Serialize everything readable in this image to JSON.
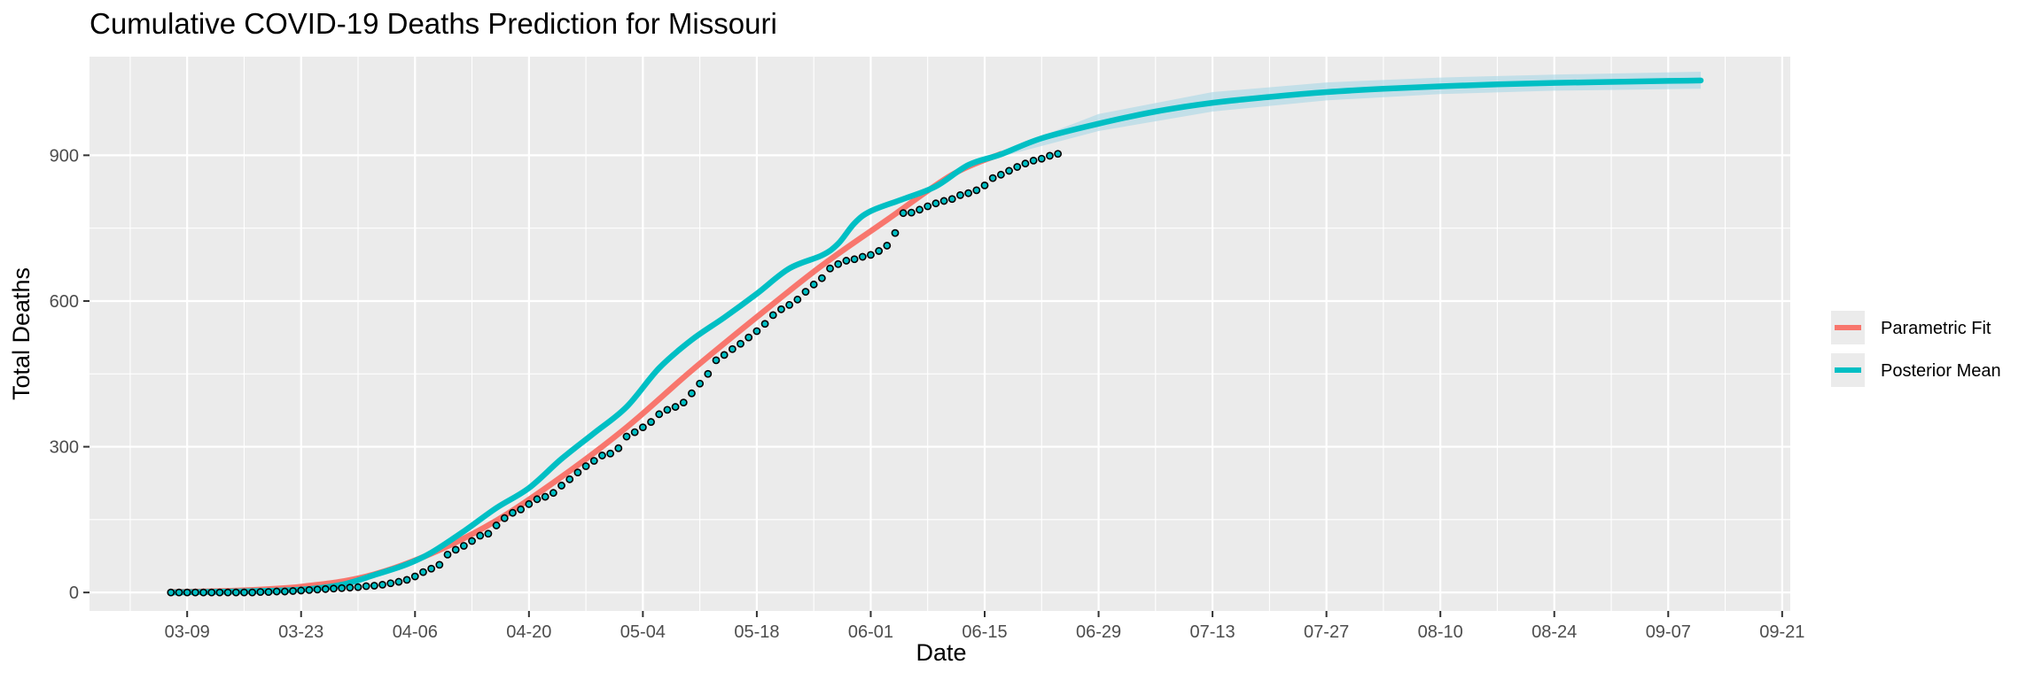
{
  "chart_data": {
    "type": "line",
    "title": "Cumulative COVID-19 Deaths Prediction for Missouri",
    "xlabel": "Date",
    "ylabel": "Total Deaths",
    "x_axis": {
      "kind": "date",
      "year": 2020,
      "range": [
        "2020-02-26",
        "2020-09-22"
      ],
      "tick_dates": [
        "2020-03-09",
        "2020-03-23",
        "2020-04-06",
        "2020-04-20",
        "2020-05-04",
        "2020-05-18",
        "2020-06-01",
        "2020-06-15",
        "2020-06-29",
        "2020-07-13",
        "2020-07-27",
        "2020-08-10",
        "2020-08-24",
        "2020-09-07",
        "2020-09-21"
      ],
      "tick_labels": [
        "03-09",
        "03-23",
        "04-06",
        "04-20",
        "05-04",
        "05-18",
        "06-01",
        "06-15",
        "06-29",
        "07-13",
        "07-27",
        "08-10",
        "08-24",
        "09-07",
        "09-21"
      ]
    },
    "ylim": [
      -38,
      1103
    ],
    "y_ticks": [
      0,
      300,
      600,
      900
    ],
    "grid": true,
    "legend_position": "right",
    "legend": [
      {
        "label": "Parametric Fit",
        "color": "#F8766D"
      },
      {
        "label": "Posterior Mean",
        "color": "#00BFC4"
      }
    ],
    "series": [
      {
        "name": "Parametric Fit",
        "color": "#F8766D",
        "x": [
          "2020-03-07",
          "2020-03-15",
          "2020-03-23",
          "2020-03-31",
          "2020-04-08",
          "2020-04-16",
          "2020-04-24",
          "2020-05-02",
          "2020-05-10",
          "2020-05-18",
          "2020-05-26",
          "2020-06-03",
          "2020-06-11",
          "2020-06-17"
        ],
        "y": [
          1,
          4,
          12,
          33,
          80,
          148,
          238,
          340,
          457,
          567,
          673,
          767,
          860,
          903
        ]
      },
      {
        "name": "Posterior Mean",
        "color": "#00BFC4",
        "x": [
          "2020-03-07",
          "2020-03-15",
          "2020-03-23",
          "2020-03-28",
          "2020-04-01",
          "2020-04-05",
          "2020-04-08",
          "2020-04-12",
          "2020-04-16",
          "2020-04-20",
          "2020-04-24",
          "2020-04-28",
          "2020-05-02",
          "2020-05-06",
          "2020-05-10",
          "2020-05-14",
          "2020-05-18",
          "2020-05-22",
          "2020-05-26",
          "2020-05-28",
          "2020-05-30",
          "2020-06-01",
          "2020-06-05",
          "2020-06-09",
          "2020-06-13",
          "2020-06-17",
          "2020-06-22",
          "2020-06-29",
          "2020-07-06",
          "2020-07-13",
          "2020-07-20",
          "2020-07-27",
          "2020-08-03",
          "2020-08-10",
          "2020-08-17",
          "2020-08-24",
          "2020-08-31",
          "2020-09-07",
          "2020-09-11"
        ],
        "y": [
          0,
          2,
          6,
          16,
          36,
          58,
          82,
          126,
          174,
          215,
          275,
          328,
          382,
          462,
          520,
          566,
          615,
          667,
          694,
          718,
          760,
          785,
          810,
          836,
          880,
          902,
          935,
          965,
          990,
          1008,
          1020,
          1030,
          1037,
          1042,
          1046,
          1049,
          1051,
          1053,
          1054
        ]
      }
    ],
    "credible_band": {
      "x": [
        "2020-06-17",
        "2020-06-29",
        "2020-07-13",
        "2020-07-27",
        "2020-08-10",
        "2020-08-24",
        "2020-09-11"
      ],
      "lower": [
        897,
        950,
        990,
        1013,
        1026,
        1033,
        1037
      ],
      "upper": [
        907,
        985,
        1030,
        1050,
        1060,
        1066,
        1072
      ]
    },
    "observed": {
      "start_date": "2020-03-07",
      "y": [
        0,
        0,
        0,
        0,
        0,
        0,
        0,
        0,
        0,
        0,
        0,
        1,
        1,
        2,
        2,
        3,
        4,
        5,
        6,
        7,
        8,
        9,
        10,
        11,
        13,
        14,
        16,
        19,
        22,
        26,
        33,
        42,
        49,
        57,
        78,
        88,
        96,
        106,
        117,
        121,
        138,
        153,
        164,
        171,
        182,
        192,
        197,
        205,
        220,
        233,
        247,
        260,
        271,
        282,
        286,
        297,
        321,
        330,
        340,
        351,
        367,
        376,
        382,
        391,
        410,
        430,
        450,
        478,
        489,
        501,
        512,
        525,
        538,
        553,
        571,
        583,
        592,
        603,
        619,
        634,
        647,
        667,
        676,
        683,
        686,
        691,
        695,
        703,
        714,
        740,
        781,
        782,
        788,
        795,
        801,
        806,
        810,
        818,
        822,
        828,
        838,
        853,
        860,
        868,
        876,
        883,
        889,
        893,
        899,
        903
      ]
    }
  }
}
